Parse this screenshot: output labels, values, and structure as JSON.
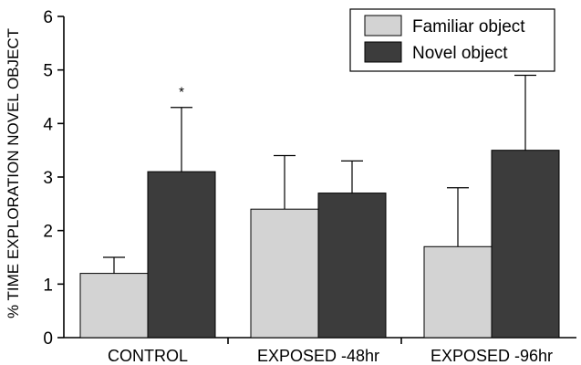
{
  "chart_data": {
    "type": "bar",
    "title": "",
    "xlabel": "",
    "ylabel": "% TIME EXPLORATION NOVEL OBJECT",
    "ylim": [
      0,
      6
    ],
    "yticks": [
      "0",
      "1",
      "2",
      "3",
      "4",
      "5",
      "6"
    ],
    "categories": [
      "CONTROL",
      "EXPOSED -48hr",
      "EXPOSED -96hr"
    ],
    "series": [
      {
        "name": "Familiar object",
        "color": "#d3d3d3",
        "values": [
          1.2,
          2.4,
          1.7
        ],
        "error_upper": [
          1.5,
          3.4,
          2.8
        ]
      },
      {
        "name": "Novel object",
        "color": "#3c3c3c",
        "values": [
          3.1,
          2.7,
          3.5
        ],
        "error_upper": [
          4.3,
          3.3,
          4.9
        ]
      }
    ],
    "annotations": [
      {
        "text": "*",
        "category_index": 0,
        "series_index": 1
      }
    ],
    "legend": {
      "position": "top-right"
    },
    "grid": false
  }
}
